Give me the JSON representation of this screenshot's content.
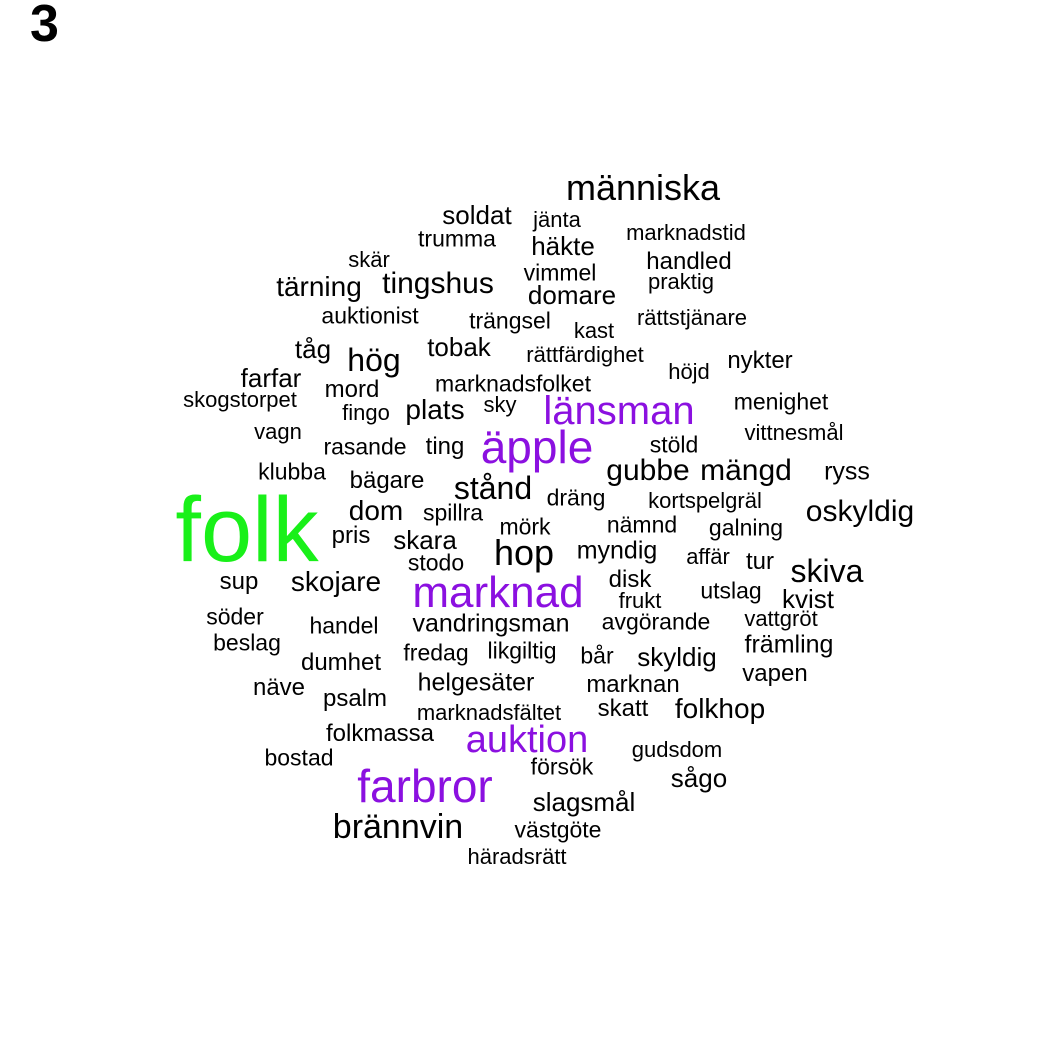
{
  "panel_label": "3",
  "colors": {
    "default": "#000000",
    "purple": "#8b10e0",
    "green": "#19f019"
  },
  "words": [
    {
      "text": "folk",
      "color": "green"
    },
    {
      "text": "människa"
    },
    {
      "text": "soldat"
    },
    {
      "text": "jänta"
    },
    {
      "text": "trumma"
    },
    {
      "text": "häkte"
    },
    {
      "text": "marknadstid"
    },
    {
      "text": "skär"
    },
    {
      "text": "handled"
    },
    {
      "text": "vimmel"
    },
    {
      "text": "tärning"
    },
    {
      "text": "tingshus"
    },
    {
      "text": "praktig"
    },
    {
      "text": "domare"
    },
    {
      "text": "auktionist"
    },
    {
      "text": "trängsel"
    },
    {
      "text": "rättstjänare"
    },
    {
      "text": "kast"
    },
    {
      "text": "tåg"
    },
    {
      "text": "tobak"
    },
    {
      "text": "hög"
    },
    {
      "text": "rättfärdighet"
    },
    {
      "text": "nykter"
    },
    {
      "text": "höjd"
    },
    {
      "text": "farfar"
    },
    {
      "text": "marknadsfolket"
    },
    {
      "text": "mord"
    },
    {
      "text": "skogstorpet"
    },
    {
      "text": "menighet"
    },
    {
      "text": "sky"
    },
    {
      "text": "länsman",
      "color": "purple"
    },
    {
      "text": "plats"
    },
    {
      "text": "fingo"
    },
    {
      "text": "vagn"
    },
    {
      "text": "vittnesmål"
    },
    {
      "text": "äpple",
      "color": "purple"
    },
    {
      "text": "stöld"
    },
    {
      "text": "rasande"
    },
    {
      "text": "ting"
    },
    {
      "text": "klubba"
    },
    {
      "text": "gubbe"
    },
    {
      "text": "mängd"
    },
    {
      "text": "ryss"
    },
    {
      "text": "bägare"
    },
    {
      "text": "stånd"
    },
    {
      "text": "dräng"
    },
    {
      "text": "kortspelgräl"
    },
    {
      "text": "dom"
    },
    {
      "text": "spillra"
    },
    {
      "text": "oskyldig"
    },
    {
      "text": "nämnd"
    },
    {
      "text": "mörk"
    },
    {
      "text": "galning"
    },
    {
      "text": "pris"
    },
    {
      "text": "skara"
    },
    {
      "text": "hop"
    },
    {
      "text": "myndig"
    },
    {
      "text": "affär"
    },
    {
      "text": "stodo"
    },
    {
      "text": "tur"
    },
    {
      "text": "skiva"
    },
    {
      "text": "sup"
    },
    {
      "text": "skojare"
    },
    {
      "text": "marknad",
      "color": "purple"
    },
    {
      "text": "disk"
    },
    {
      "text": "utslag"
    },
    {
      "text": "kvist"
    },
    {
      "text": "frukt"
    },
    {
      "text": "söder"
    },
    {
      "text": "handel"
    },
    {
      "text": "vandringsman"
    },
    {
      "text": "avgörande"
    },
    {
      "text": "vattgröt"
    },
    {
      "text": "beslag"
    },
    {
      "text": "främling"
    },
    {
      "text": "fredag"
    },
    {
      "text": "likgiltig"
    },
    {
      "text": "bår"
    },
    {
      "text": "skyldig"
    },
    {
      "text": "dumhet"
    },
    {
      "text": "vapen"
    },
    {
      "text": "näve"
    },
    {
      "text": "helgesäter"
    },
    {
      "text": "marknan"
    },
    {
      "text": "psalm"
    },
    {
      "text": "skatt"
    },
    {
      "text": "folkhop"
    },
    {
      "text": "marknadsfältet"
    },
    {
      "text": "folkmassa"
    },
    {
      "text": "auktion",
      "color": "purple"
    },
    {
      "text": "gudsdom"
    },
    {
      "text": "bostad"
    },
    {
      "text": "försök"
    },
    {
      "text": "farbror",
      "color": "purple"
    },
    {
      "text": "sågo"
    },
    {
      "text": "slagsmål"
    },
    {
      "text": "brännvin"
    },
    {
      "text": "västgöte"
    },
    {
      "text": "häradsrätt"
    }
  ]
}
